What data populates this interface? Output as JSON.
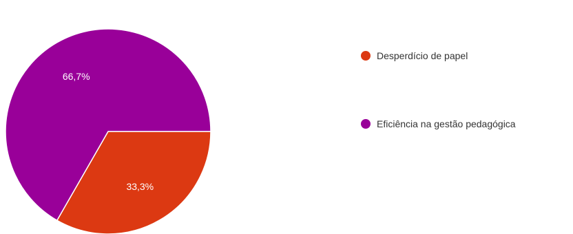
{
  "chart_data": {
    "type": "pie",
    "slices": [
      {
        "label": "Desperdício de papel",
        "value": 33.3,
        "display": "33,3%",
        "color": "#dc3912"
      },
      {
        "label": "Eficiência na gestão pedagógica",
        "value": 66.7,
        "display": "66,7%",
        "color": "#990099"
      }
    ],
    "legend_position": "right",
    "title": ""
  }
}
